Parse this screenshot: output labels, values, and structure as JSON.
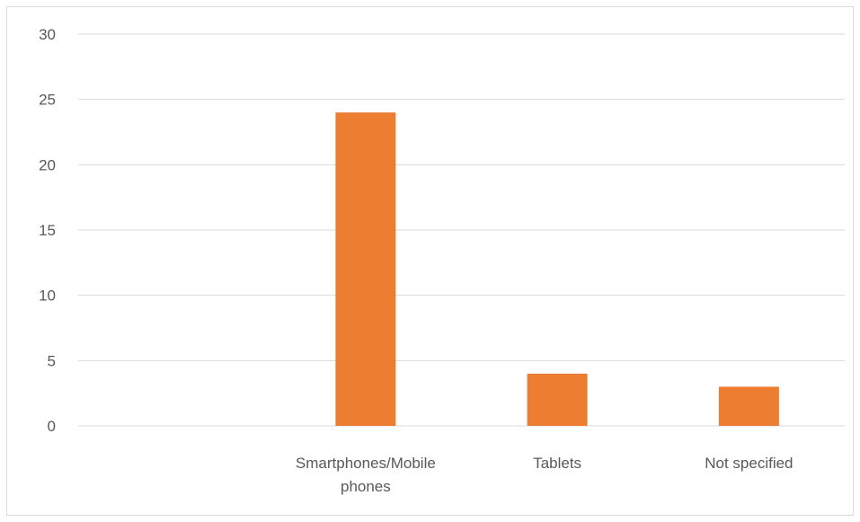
{
  "chart_data": {
    "type": "bar",
    "title": "",
    "xlabel": "",
    "ylabel": "",
    "categories": [
      "",
      "Smartphones/Mobile phones",
      "Tablets",
      "Not specified"
    ],
    "values": [
      0,
      24,
      4,
      3
    ],
    "ylim": [
      0,
      30
    ],
    "yticks": [
      0,
      5,
      10,
      15,
      20,
      25,
      30
    ],
    "grid": true,
    "legend": "none",
    "bar_color": "#ed7d31",
    "grid_color": "#d9d9d9",
    "label_color": "#595959"
  }
}
